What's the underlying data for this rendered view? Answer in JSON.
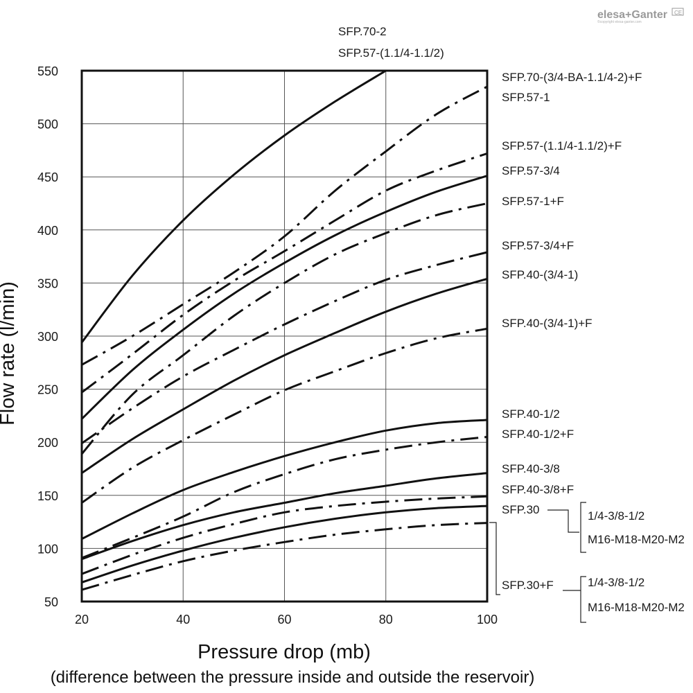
{
  "brand": {
    "logo_text": "elesa+Ganter",
    "badge": "CE",
    "copyright": "©copyright elesa-ganter.com"
  },
  "chart_data": {
    "type": "line",
    "title": "",
    "xlabel": "Pressure drop (mb)",
    "xlabel_note": "(difference between the pressure inside and outside the reservoir)",
    "ylabel": "Flow rate (l/min)",
    "xlim": [
      20,
      100
    ],
    "ylim": [
      50,
      550
    ],
    "xticks": [
      20,
      40,
      60,
      80,
      100
    ],
    "yticks": [
      50,
      100,
      150,
      200,
      250,
      300,
      350,
      400,
      450,
      500,
      550
    ],
    "grid": true,
    "series": [
      {
        "name": "SFP.70-2",
        "name2": "SFP.57-(1.1/4-1.1/2)",
        "style": "solid",
        "x": [
          20,
          30,
          40,
          50,
          60,
          70,
          80
        ],
        "y": [
          294,
          357,
          409,
          452,
          489,
          521,
          550
        ]
      },
      {
        "name": "SFP.70-(3/4-BA-1.1/4-2)+F",
        "style": "dashdot",
        "x": [
          20,
          30,
          40,
          50,
          60,
          70,
          80,
          90,
          100
        ],
        "y": [
          273,
          300,
          330,
          360,
          394,
          437,
          474,
          509,
          535
        ]
      },
      {
        "name": "SFP.57-1",
        "style": "dashdot",
        "x": [
          20,
          30,
          40,
          50,
          60,
          70,
          80,
          90,
          100
        ],
        "y": [
          247,
          283,
          320,
          352,
          380,
          409,
          437,
          456,
          472
        ]
      },
      {
        "name": "SFP.57-(1.1/4-1.1/2)+F",
        "style": "solid",
        "x": [
          20,
          30,
          40,
          50,
          60,
          70,
          80,
          90,
          100
        ],
        "y": [
          222,
          268,
          306,
          340,
          369,
          395,
          417,
          436,
          451
        ]
      },
      {
        "name": "SFP.57-3/4",
        "style": "dashdot",
        "x": [
          20,
          30,
          40,
          50,
          60,
          70,
          80,
          90,
          100
        ],
        "y": [
          189,
          245,
          282,
          319,
          350,
          377,
          397,
          414,
          425
        ]
      },
      {
        "name": "SFP.57-1+F",
        "style": "dashdot",
        "x": [
          20,
          30,
          40,
          50,
          60,
          70,
          80,
          90,
          100
        ],
        "y": [
          199,
          232,
          262,
          287,
          311,
          333,
          353,
          367,
          379
        ]
      },
      {
        "name": "SFP.57-3/4+F",
        "style": "solid",
        "x": [
          20,
          30,
          40,
          50,
          60,
          70,
          80,
          90,
          100
        ],
        "y": [
          171,
          203,
          231,
          258,
          282,
          303,
          323,
          340,
          354
        ]
      },
      {
        "name": "SFP.40-(3/4-1)",
        "style": "dashdot",
        "x": [
          20,
          30,
          40,
          50,
          60,
          70,
          80,
          90,
          100
        ],
        "y": [
          143,
          176,
          202,
          226,
          249,
          267,
          284,
          298,
          307
        ]
      },
      {
        "name": "SFP.40-(3/4-1)+F",
        "style": "solid",
        "x": [
          20,
          30,
          40,
          50,
          60,
          70,
          80,
          90,
          100
        ],
        "y": [
          109,
          133,
          155,
          172,
          187,
          200,
          211,
          218,
          221
        ]
      },
      {
        "name": "SFP.40-1/2",
        "style": "dashdot",
        "x": [
          20,
          30,
          40,
          50,
          60,
          70,
          80,
          90,
          100
        ],
        "y": [
          91,
          110,
          130,
          153,
          170,
          184,
          193,
          200,
          205
        ]
      },
      {
        "name": "SFP.40-1/2+F",
        "style": "solid",
        "x": [
          20,
          30,
          40,
          50,
          60,
          70,
          80,
          90,
          100
        ],
        "y": [
          90,
          107,
          122,
          134,
          143,
          152,
          159,
          166,
          171
        ]
      },
      {
        "name": "SFP.40-3/8",
        "style": "dashdot",
        "x": [
          20,
          30,
          40,
          50,
          60,
          70,
          80,
          90,
          100
        ],
        "y": [
          76,
          94,
          110,
          123,
          134,
          140,
          144,
          147,
          149
        ]
      },
      {
        "name": "SFP.40-3/8+F",
        "style": "solid",
        "x": [
          20,
          30,
          40,
          50,
          60,
          70,
          80,
          90,
          100
        ],
        "y": [
          68,
          84,
          98,
          110,
          120,
          128,
          134,
          138,
          140
        ]
      },
      {
        "name": "SFP.30",
        "style": "dashdot",
        "x": [
          20,
          30,
          40,
          50,
          60,
          70,
          80,
          90,
          100
        ],
        "y": [
          61,
          75,
          88,
          98,
          106,
          113,
          118,
          122,
          124
        ]
      }
    ],
    "right_labels": [
      "SFP.70-(3/4-BA-1.1/4-2)+F",
      "SFP.57-1",
      "SFP.57-(1.1/4-1.1/2)+F",
      "SFP.57-3/4",
      "SFP.57-1+F",
      "SFP.57-3/4+F",
      "SFP.40-(3/4-1)",
      "SFP.40-(3/4-1)+F",
      "SFP.40-1/2",
      "SFP.40-1/2+F",
      "SFP.40-3/8",
      "SFP.40-3/8+F",
      "SFP.30",
      "SFP.30+F"
    ],
    "top_labels": [
      "SFP.70-2",
      "SFP.57-(1.1/4-1.1/2)"
    ],
    "bracket_groups": [
      {
        "for": "SFP.30",
        "line1": "1/4-3/8-1/2",
        "line2": "M16-M18-M20-M2"
      },
      {
        "for": "SFP.30+F",
        "line1": "1/4-3/8-1/2",
        "line2": "M16-M18-M20-M2"
      }
    ]
  }
}
